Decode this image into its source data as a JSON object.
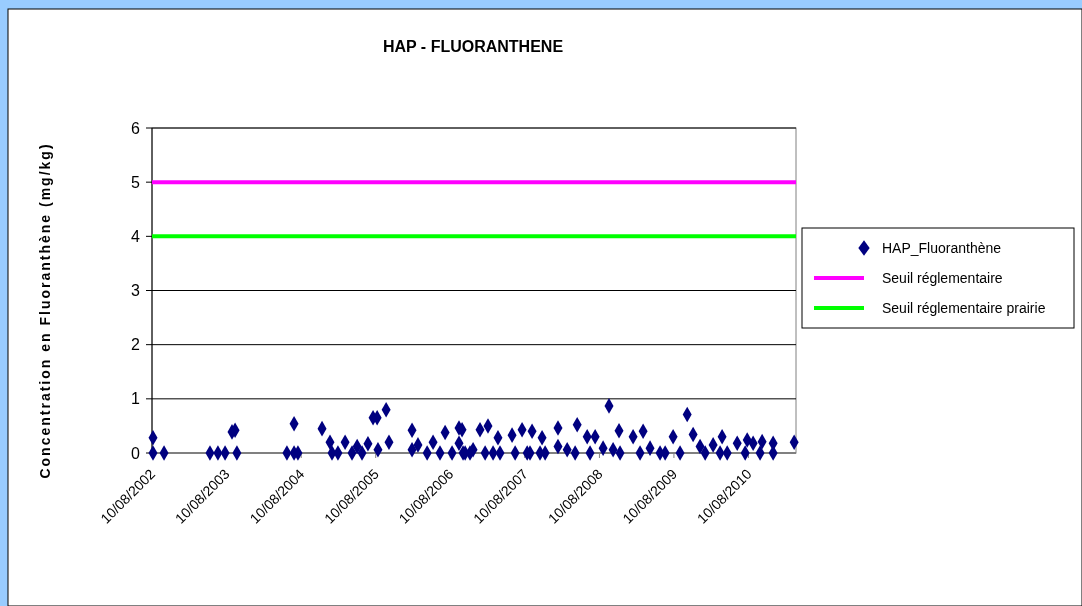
{
  "chart_data": {
    "type": "scatter",
    "title": "HAP - FLUORANTHENE",
    "ylabel": "Concentration en Fluoranthène (mg/kg)",
    "xlim": [
      "2002-08-10",
      "2011-03-31"
    ],
    "ylim": [
      0,
      6
    ],
    "yticks": [
      0,
      1,
      2,
      3,
      4,
      5,
      6
    ],
    "xticks": [
      {
        "value": "2002-08-10",
        "label": "10/08/2002"
      },
      {
        "value": "2003-08-10",
        "label": "10/08/2003"
      },
      {
        "value": "2004-08-10",
        "label": "10/08/2004"
      },
      {
        "value": "2005-08-10",
        "label": "10/08/2005"
      },
      {
        "value": "2006-08-10",
        "label": "10/08/2006"
      },
      {
        "value": "2007-08-10",
        "label": "10/08/2007"
      },
      {
        "value": "2008-08-10",
        "label": "10/08/2008"
      },
      {
        "value": "2009-08-10",
        "label": "10/08/2009"
      },
      {
        "value": "2010-08-10",
        "label": "10/08/2010"
      }
    ],
    "grid": "y",
    "legend": "right",
    "marker": "diamond",
    "series": [
      {
        "name": "HAP_Fluoranthène",
        "color": "#000080",
        "x": [
          "2002-08-15",
          "2002-08-15",
          "2002-10-08",
          "2003-05-21",
          "2003-06-29",
          "2003-08-03",
          "2003-09-06",
          "2003-09-21",
          "2003-09-30",
          "2004-06-01",
          "2004-07-06",
          "2004-07-06",
          "2004-07-25",
          "2004-11-20",
          "2004-12-29",
          "2005-01-08",
          "2005-02-06",
          "2005-03-13",
          "2005-04-16",
          "2005-05-11",
          "2005-06-04",
          "2005-07-03",
          "2005-07-28",
          "2005-08-17",
          "2005-08-21",
          "2005-09-30",
          "2005-10-14",
          "2006-02-04",
          "2006-02-04",
          "2006-03-05",
          "2006-04-19",
          "2006-05-18",
          "2006-06-21",
          "2006-07-16",
          "2006-08-19",
          "2006-09-22",
          "2006-09-22",
          "2006-10-07",
          "2006-10-12",
          "2006-10-22",
          "2006-11-15",
          "2006-11-30",
          "2007-01-03",
          "2007-01-28",
          "2007-02-11",
          "2007-03-08",
          "2007-04-01",
          "2007-04-11",
          "2007-06-09",
          "2007-06-24",
          "2007-07-28",
          "2007-08-22",
          "2007-09-05",
          "2007-09-15",
          "2007-10-24",
          "2007-11-03",
          "2007-11-18",
          "2008-01-20",
          "2008-01-20",
          "2008-03-05",
          "2008-04-13",
          "2008-04-23",
          "2008-06-11",
          "2008-06-25",
          "2008-07-20",
          "2008-08-28",
          "2008-09-26",
          "2008-10-16",
          "2008-11-14",
          "2008-11-19",
          "2009-01-22",
          "2009-02-25",
          "2009-03-12",
          "2009-04-15",
          "2009-06-03",
          "2009-06-28",
          "2009-08-06",
          "2009-09-09",
          "2009-10-14",
          "2009-11-12",
          "2009-12-16",
          "2010-01-10",
          "2010-02-18",
          "2010-03-24",
          "2010-04-03",
          "2010-04-28",
          "2010-06-16",
          "2010-07-25",
          "2010-08-04",
          "2010-09-02",
          "2010-10-06",
          "2010-10-16",
          "2010-12-09",
          "2010-12-09",
          "2011-03-22"
        ],
        "values": [
          0.28,
          0,
          0,
          0,
          0,
          0,
          0.39,
          0.42,
          0,
          0,
          0.54,
          0,
          0,
          0.45,
          0.2,
          0,
          0,
          0.2,
          0,
          0.12,
          0,
          0.17,
          0.65,
          0.65,
          0.06,
          0.8,
          0.2,
          0.42,
          0.06,
          0.15,
          0,
          0.2,
          0,
          0.38,
          0,
          0.46,
          0.18,
          0.43,
          0,
          0,
          0,
          0.06,
          0.43,
          0,
          0.5,
          0,
          0.28,
          0,
          0.33,
          0,
          0.43,
          0,
          0,
          0.4,
          0,
          0.28,
          0,
          0.46,
          0.12,
          0.06,
          0,
          0.52,
          0.3,
          0,
          0.3,
          0.09,
          0.87,
          0.06,
          0.41,
          0,
          0.3,
          0,
          0.4,
          0.09,
          0,
          0,
          0.3,
          0,
          0.71,
          0.34,
          0.12,
          0,
          0.15,
          0,
          0.3,
          0,
          0.18,
          0,
          0.24,
          0.18,
          0,
          0.21,
          0.18,
          0,
          0.2
        ]
      }
    ],
    "ref_lines": [
      {
        "axis": "y",
        "value": 5,
        "label": "Seuil réglementaire",
        "color": "#ff00ff"
      },
      {
        "axis": "y",
        "value": 4,
        "label": "Seuil réglementaire prairie",
        "color": "#00ff00"
      }
    ]
  }
}
